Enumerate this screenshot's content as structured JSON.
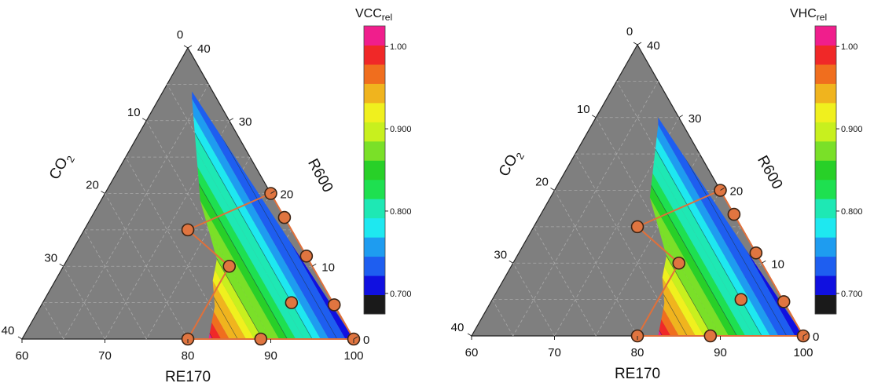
{
  "chart_data": [
    {
      "type": "ternary-contour",
      "id": "vcc",
      "colorbar": {
        "title": "VCC",
        "subscript": "rel",
        "ticks": [
          "1.00",
          "0.900",
          "0.800",
          "0.700"
        ],
        "tick_values": [
          1.0,
          0.9,
          0.8,
          0.7
        ],
        "range": [
          0.675,
          1.025
        ]
      },
      "axes": {
        "RE170": {
          "label": "RE170",
          "range": [
            60,
            100
          ],
          "ticks": [
            "60",
            "70",
            "80",
            "90",
            "100"
          ]
        },
        "R600": {
          "label": "R600",
          "range": [
            0,
            40
          ],
          "ticks": [
            "0",
            "10",
            "20",
            "30",
            "40"
          ]
        },
        "CO2": {
          "label": "CO",
          "subscript": "2",
          "range": [
            0,
            40
          ],
          "ticks": [
            "0",
            "10",
            "20",
            "30",
            "40"
          ]
        }
      },
      "region_outline": [
        [
          80,
          0
        ],
        [
          88.8,
          0
        ],
        [
          100,
          0
        ],
        [
          98.5,
          1.5
        ],
        [
          94,
          6
        ],
        [
          92,
          8
        ],
        [
          88.6,
          11.4
        ],
        [
          86,
          14
        ],
        [
          83.3,
          16.7
        ],
        [
          80,
          20
        ],
        [
          72.5,
          15
        ],
        [
          80,
          10
        ],
        [
          80,
          0
        ]
      ],
      "points": [
        {
          "re170": 80,
          "r600": 20,
          "co2": 0
        },
        {
          "re170": 83.3,
          "r600": 16.7,
          "co2": 0
        },
        {
          "re170": 72.5,
          "r600": 15,
          "co2": 12.5
        },
        {
          "re170": 80,
          "r600": 10,
          "co2": 10
        },
        {
          "re170": 88.6,
          "r600": 11.4,
          "co2": 0
        },
        {
          "re170": 90,
          "r600": 5,
          "co2": 5
        },
        {
          "re170": 95.3,
          "r600": 4.7,
          "co2": 0
        },
        {
          "re170": 80,
          "r600": 0,
          "co2": 20
        },
        {
          "re170": 88.8,
          "r600": 0,
          "co2": 11.2
        },
        {
          "re170": 100,
          "r600": 0,
          "co2": 0
        }
      ]
    },
    {
      "type": "ternary-contour",
      "id": "vhc",
      "colorbar": {
        "title": "VHC",
        "subscript": "rel",
        "ticks": [
          "1.00",
          "0.900",
          "0.800",
          "0.700"
        ],
        "tick_values": [
          1.0,
          0.9,
          0.8,
          0.7
        ],
        "range": [
          0.675,
          1.025
        ]
      },
      "axes": {
        "RE170": {
          "label": "RE170",
          "range": [
            60,
            100
          ],
          "ticks": [
            "60",
            "70",
            "80",
            "90",
            "100"
          ]
        },
        "R600": {
          "label": "R600",
          "range": [
            0,
            40
          ],
          "ticks": [
            "0",
            "10",
            "20",
            "30",
            "40"
          ]
        },
        "CO2": {
          "label": "CO",
          "subscript": "2",
          "range": [
            0,
            40
          ],
          "ticks": [
            "0",
            "10",
            "20",
            "30",
            "40"
          ]
        }
      },
      "region_outline": [
        [
          80,
          0
        ],
        [
          88.8,
          0
        ],
        [
          100,
          0
        ],
        [
          98.5,
          1.5
        ],
        [
          94,
          6
        ],
        [
          92,
          8
        ],
        [
          88.6,
          11.4
        ],
        [
          86,
          14
        ],
        [
          83.3,
          16.7
        ],
        [
          80,
          20
        ],
        [
          72.5,
          15
        ],
        [
          80,
          10
        ],
        [
          80,
          0
        ]
      ],
      "points": [
        {
          "re170": 80,
          "r600": 20,
          "co2": 0
        },
        {
          "re170": 83.3,
          "r600": 16.7,
          "co2": 0
        },
        {
          "re170": 72.5,
          "r600": 15,
          "co2": 12.5
        },
        {
          "re170": 80,
          "r600": 10,
          "co2": 10
        },
        {
          "re170": 88.6,
          "r600": 11.4,
          "co2": 0
        },
        {
          "re170": 90,
          "r600": 5,
          "co2": 5
        },
        {
          "re170": 95.3,
          "r600": 4.7,
          "co2": 0
        },
        {
          "re170": 80,
          "r600": 0,
          "co2": 20
        },
        {
          "re170": 88.8,
          "r600": 0,
          "co2": 11.2
        },
        {
          "re170": 100,
          "r600": 0,
          "co2": 0
        }
      ]
    }
  ],
  "style": {
    "triangle_fill": "#7f7f7f",
    "grid_color": "#a9a9a9",
    "outline_color": "#e0703a",
    "marker_fill": "#e07540",
    "marker_stroke": "#3a2415",
    "colormap": [
      "#1a1a1a",
      "#1010e0",
      "#1e5ef0",
      "#1e9cf0",
      "#1ee8f0",
      "#1ee8b4",
      "#1ee050",
      "#28d028",
      "#7ae028",
      "#c8f01e",
      "#f0f01e",
      "#f0b41e",
      "#f06e1e",
      "#f02828",
      "#f01e8c"
    ]
  }
}
